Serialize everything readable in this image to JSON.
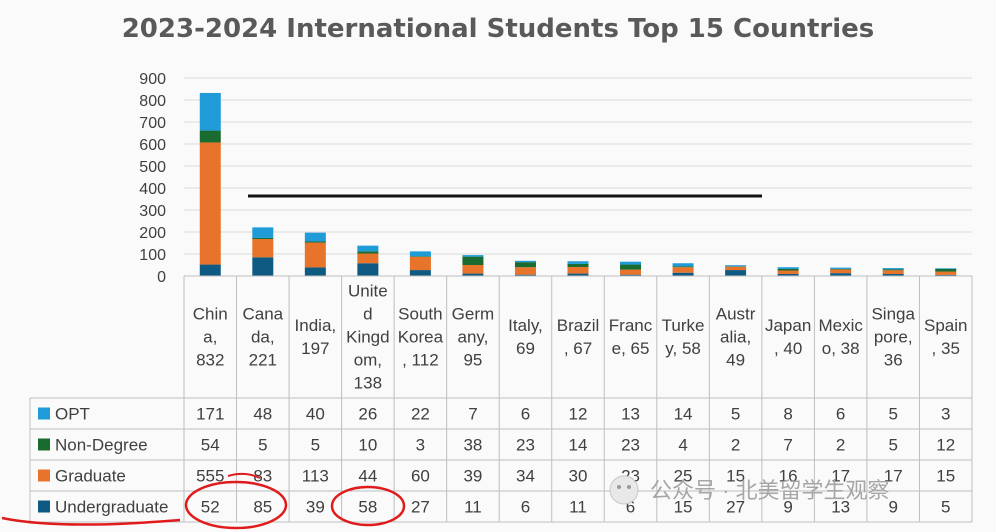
{
  "chart_data": {
    "type": "bar",
    "stacked": true,
    "title": "2023-2024 International Students Top 15 Countries",
    "ylim": [
      0,
      900
    ],
    "yticks": [
      0,
      100,
      200,
      300,
      400,
      500,
      600,
      700,
      800,
      900
    ],
    "grid": true,
    "legend": "data-table-left",
    "categories": [
      "China, 832",
      "Canada, 221",
      "India, 197",
      "United Kingdom, 138",
      "South Korea, 112",
      "Germany, 95",
      "Italy, 69",
      "Brazil, 67",
      "France, 65",
      "Turkey, 58",
      "Australia, 49",
      "Japan, 40",
      "Mexico, 38",
      "Singapore, 36",
      "Spain, 35"
    ],
    "category_lines": [
      [
        "Chin",
        "a,",
        "832"
      ],
      [
        "Cana",
        "da,",
        "221"
      ],
      [
        "India,",
        "197"
      ],
      [
        "Unite",
        "d",
        "Kingd",
        "om,",
        "138"
      ],
      [
        "South",
        "Korea",
        ", 112"
      ],
      [
        "Germ",
        "any,",
        "95"
      ],
      [
        "Italy,",
        "69"
      ],
      [
        "Brazil",
        ", 67"
      ],
      [
        "Franc",
        "e, 65"
      ],
      [
        "Turke",
        "y, 58"
      ],
      [
        "Austr",
        "alia,",
        "49"
      ],
      [
        "Japan",
        ", 40"
      ],
      [
        "Mexic",
        "o, 38"
      ],
      [
        "Singa",
        "pore,",
        "36"
      ],
      [
        "Spain",
        ", 35"
      ]
    ],
    "series": [
      {
        "name": "OPT",
        "color": "#1f9bd7",
        "values": [
          171,
          48,
          40,
          26,
          22,
          7,
          6,
          12,
          13,
          14,
          5,
          8,
          6,
          5,
          3
        ]
      },
      {
        "name": "Non-Degree",
        "color": "#1a6b30",
        "values": [
          54,
          5,
          5,
          10,
          3,
          38,
          23,
          14,
          23,
          4,
          2,
          7,
          2,
          5,
          12
        ]
      },
      {
        "name": "Graduate",
        "color": "#e8732a",
        "values": [
          555,
          83,
          113,
          44,
          60,
          39,
          34,
          30,
          23,
          25,
          15,
          16,
          17,
          17,
          15
        ]
      },
      {
        "name": "Undergraduate",
        "color": "#0e5a82",
        "values": [
          52,
          85,
          39,
          58,
          27,
          11,
          6,
          11,
          6,
          15,
          27,
          9,
          13,
          9,
          5
        ]
      }
    ]
  },
  "watermark": {
    "text": "公众号 · 北美留学生观察"
  }
}
